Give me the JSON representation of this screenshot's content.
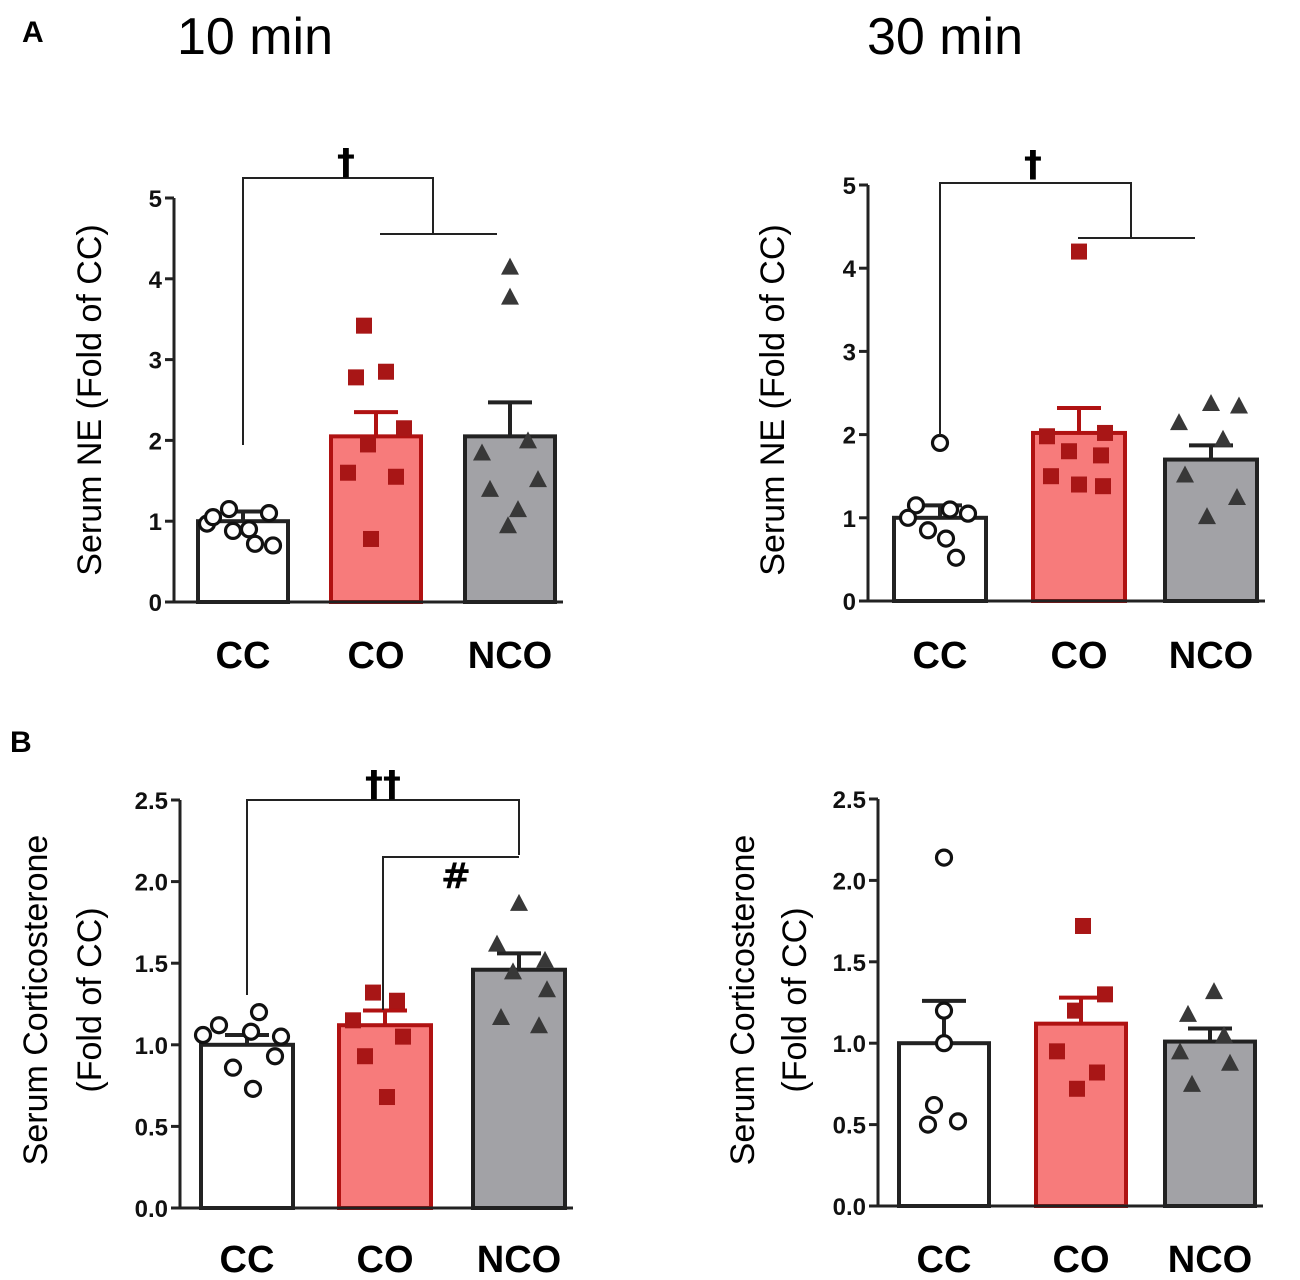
{
  "panel_labels": {
    "a": "A",
    "b": "B"
  },
  "column_titles": {
    "left": "10 min",
    "right": "30 min"
  },
  "colors": {
    "CC": "#ffffff",
    "CO": "#f77b7b",
    "NCO": "#a2a2a6",
    "CO_edge": "#b01212",
    "CO_point": "#a81616",
    "NCO_point": "#383838",
    "axis": "#222222"
  },
  "chart_data": [
    {
      "id": "ne_10",
      "type": "bar",
      "ylabel": "Serum NE (Fold of CC)",
      "ylim": [
        0,
        5
      ],
      "yticks": [
        "0",
        "1",
        "2",
        "3",
        "4",
        "5"
      ],
      "categories": [
        "CC",
        "CO",
        "NCO"
      ],
      "values": [
        1.0,
        2.05,
        2.05
      ],
      "errors": [
        0.12,
        0.3,
        0.42
      ],
      "points": [
        [
          0.97,
          1.15,
          0.9,
          1.1,
          1.05,
          0.72,
          0.88,
          0.7
        ],
        [
          3.42,
          2.85,
          2.78,
          2.15,
          1.95,
          1.6,
          1.55,
          0.78
        ],
        [
          4.15,
          3.78,
          2.0,
          1.85,
          1.52,
          1.4,
          1.15,
          0.95
        ]
      ],
      "annotations": [
        {
          "text": "†",
          "bracket": "CC vs CO+NCO"
        }
      ]
    },
    {
      "id": "ne_30",
      "type": "bar",
      "ylabel": "Serum NE (Fold of CC)",
      "ylim": [
        0,
        5
      ],
      "yticks": [
        "0",
        "1",
        "2",
        "3",
        "4",
        "5"
      ],
      "categories": [
        "CC",
        "CO",
        "NCO"
      ],
      "values": [
        1.0,
        2.02,
        1.7
      ],
      "errors": [
        0.15,
        0.3,
        0.17
      ],
      "points": [
        [
          1.9,
          1.15,
          1.1,
          1.05,
          1.0,
          0.75,
          0.85,
          0.52
        ],
        [
          4.2,
          2.02,
          1.98,
          1.8,
          1.75,
          1.5,
          1.4,
          1.38
        ],
        [
          2.38,
          2.35,
          2.15,
          1.95,
          1.52,
          1.25,
          1.02
        ]
      ],
      "annotations": [
        {
          "text": "†",
          "bracket": "CC vs CO+NCO"
        }
      ]
    },
    {
      "id": "cort_10",
      "type": "bar",
      "ylabel": [
        "Serum Corticosterone",
        "(Fold of CC)"
      ],
      "ylim": [
        0,
        2.5
      ],
      "yticks": [
        "0.0",
        "0.5",
        "1.0",
        "1.5",
        "2.0",
        "2.5"
      ],
      "categories": [
        "CC",
        "CO",
        "NCO"
      ],
      "values": [
        1.0,
        1.12,
        1.46
      ],
      "errors": [
        0.06,
        0.09,
        0.1
      ],
      "points": [
        [
          1.2,
          1.12,
          1.08,
          1.06,
          1.05,
          0.93,
          0.86,
          0.73
        ],
        [
          1.32,
          1.27,
          1.15,
          1.05,
          0.93,
          0.68
        ],
        [
          1.87,
          1.62,
          1.52,
          1.45,
          1.34,
          1.17,
          1.12
        ]
      ],
      "annotations": [
        {
          "text": "††",
          "bracket": "CC vs NCO"
        },
        {
          "text": "#",
          "bracket": "CO vs NCO"
        }
      ]
    },
    {
      "id": "cort_30",
      "type": "bar",
      "ylabel": [
        "Serum Corticosterone",
        "(Fold of CC)"
      ],
      "ylim": [
        0,
        2.5
      ],
      "yticks": [
        "0.0",
        "0.5",
        "1.0",
        "1.5",
        "2.0",
        "2.5"
      ],
      "categories": [
        "CC",
        "CO",
        "NCO"
      ],
      "values": [
        1.0,
        1.12,
        1.01
      ],
      "errors": [
        0.26,
        0.16,
        0.08
      ],
      "points": [
        [
          2.14,
          1.2,
          1.0,
          0.62,
          0.5,
          0.52
        ],
        [
          1.72,
          1.3,
          1.2,
          0.95,
          0.82,
          0.72
        ],
        [
          1.32,
          1.18,
          1.05,
          0.95,
          0.88,
          0.75
        ]
      ],
      "annotations": []
    }
  ]
}
